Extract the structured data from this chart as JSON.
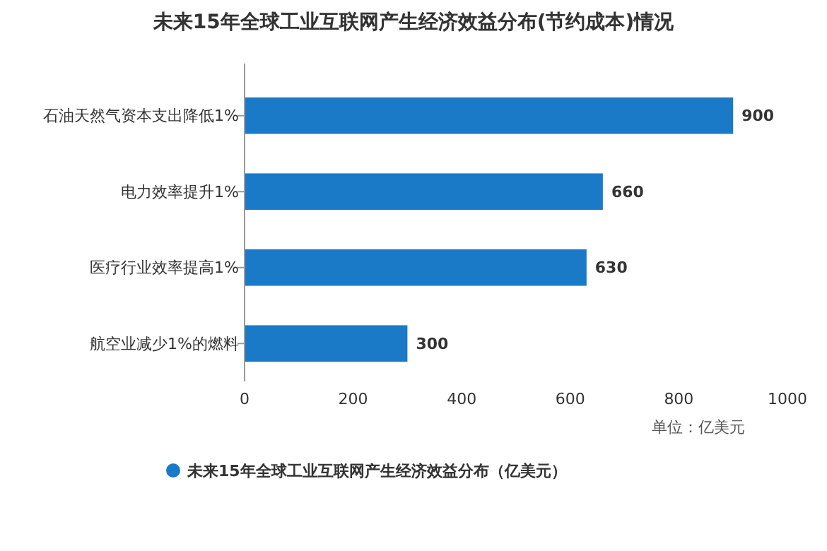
{
  "chart_data": {
    "type": "bar",
    "orientation": "horizontal",
    "title": "未来15年全球工业互联网产生经济效益分布(节约成本)情况",
    "xlabel": "单位：亿美元",
    "categories": [
      "石油天然气资本支出降低1%",
      "电力效率提升1%",
      "医疗行业效率提高1%",
      "航空业减少1%的燃料"
    ],
    "series": [
      {
        "name": "未来15年全球工业互联网产生经济效益分布（亿美元）",
        "color": "#1a7ac8",
        "values": [
          900,
          660,
          630,
          300
        ]
      }
    ],
    "xlim": [
      0,
      1000
    ],
    "xticks": [
      0,
      200,
      400,
      600,
      800,
      1000
    ],
    "data_labels": true,
    "legend": "bottom",
    "grid": false
  }
}
